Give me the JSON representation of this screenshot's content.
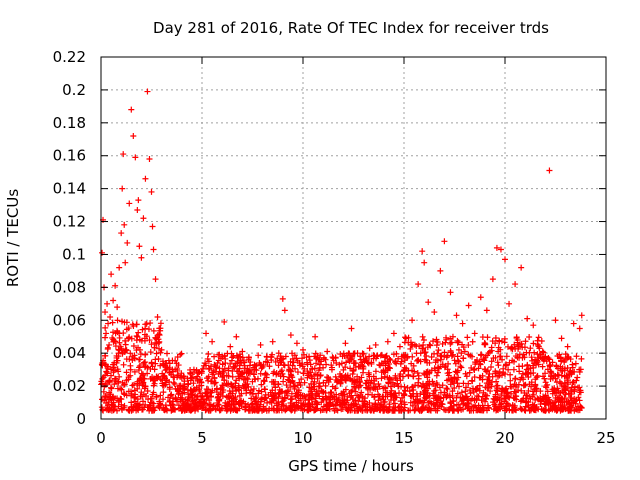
{
  "chart_data": {
    "type": "scatter",
    "title": "Day 281 of 2016, Rate Of TEC Index for receiver trds",
    "xlabel": "GPS time / hours",
    "ylabel": "ROTI / TECUs",
    "xlim": [
      0,
      25
    ],
    "ylim": [
      0,
      0.22
    ],
    "x_ticks": [
      0,
      5,
      10,
      15,
      20,
      25
    ],
    "x_tick_labels": [
      "0",
      "5",
      "10",
      "15",
      "20",
      "25"
    ],
    "y_ticks": [
      0,
      0.02,
      0.04,
      0.06,
      0.08,
      0.1,
      0.12,
      0.14,
      0.16,
      0.18,
      0.2,
      0.22
    ],
    "y_tick_labels": [
      "0",
      "0.02",
      "0.04",
      "0.06",
      "0.08",
      "0.1",
      "0.12",
      "0.14",
      "0.16",
      "0.18",
      "0.2",
      "0.22"
    ],
    "grid": true,
    "marker": "+",
    "marker_color": "#ff0000",
    "series": [
      {
        "name": "ROTI",
        "x": [
          0.05,
          0.1,
          0.15,
          0.2,
          0.25,
          0.3,
          0.35,
          0.4,
          0.45,
          0.5,
          0.6,
          0.7,
          0.8,
          0.9,
          1.0,
          1.05,
          1.1,
          1.15,
          1.2,
          1.3,
          1.4,
          1.5,
          1.6,
          1.7,
          1.8,
          1.85,
          1.9,
          2.0,
          2.1,
          2.2,
          2.3,
          2.4,
          2.5,
          2.55,
          2.6,
          2.7,
          2.8,
          2.9,
          3.0,
          3.2,
          3.4,
          3.6,
          3.8,
          4.0,
          4.3,
          4.6,
          4.9,
          5.2,
          5.5,
          5.8,
          6.1,
          6.4,
          6.7,
          7.0,
          7.3,
          7.6,
          7.9,
          8.2,
          8.5,
          8.8,
          9.0,
          9.1,
          9.4,
          9.7,
          10.0,
          10.3,
          10.6,
          10.9,
          11.2,
          11.5,
          11.8,
          12.1,
          12.4,
          12.7,
          13.0,
          13.3,
          13.6,
          13.9,
          14.2,
          14.5,
          14.8,
          15.1,
          15.4,
          15.7,
          15.9,
          16.0,
          16.2,
          16.5,
          16.8,
          17.0,
          17.3,
          17.6,
          17.9,
          18.2,
          18.5,
          18.8,
          19.1,
          19.4,
          19.6,
          19.8,
          20.0,
          20.2,
          20.5,
          20.8,
          21.1,
          21.4,
          21.7,
          22.0,
          22.2,
          22.5,
          22.8,
          23.1,
          23.4,
          23.7,
          23.8
        ],
        "y": [
          0.101,
          0.121,
          0.08,
          0.065,
          0.052,
          0.07,
          0.058,
          0.045,
          0.062,
          0.088,
          0.072,
          0.081,
          0.068,
          0.092,
          0.113,
          0.14,
          0.161,
          0.118,
          0.095,
          0.107,
          0.131,
          0.188,
          0.172,
          0.159,
          0.127,
          0.133,
          0.105,
          0.098,
          0.122,
          0.146,
          0.199,
          0.158,
          0.138,
          0.117,
          0.103,
          0.085,
          0.062,
          0.051,
          0.042,
          0.034,
          0.028,
          0.022,
          0.018,
          0.025,
          0.021,
          0.03,
          0.024,
          0.052,
          0.047,
          0.039,
          0.059,
          0.044,
          0.05,
          0.041,
          0.036,
          0.033,
          0.045,
          0.038,
          0.047,
          0.04,
          0.073,
          0.066,
          0.051,
          0.046,
          0.042,
          0.038,
          0.05,
          0.035,
          0.041,
          0.037,
          0.033,
          0.046,
          0.055,
          0.04,
          0.036,
          0.043,
          0.045,
          0.039,
          0.047,
          0.052,
          0.044,
          0.049,
          0.06,
          0.082,
          0.102,
          0.095,
          0.071,
          0.065,
          0.09,
          0.108,
          0.077,
          0.063,
          0.058,
          0.069,
          0.052,
          0.074,
          0.066,
          0.085,
          0.104,
          0.103,
          0.097,
          0.07,
          0.082,
          0.092,
          0.061,
          0.057,
          0.043,
          0.038,
          0.151,
          0.06,
          0.049,
          0.044,
          0.058,
          0.055,
          0.063
        ]
      }
    ],
    "dense_band": {
      "description": "dense background noise band of points",
      "typical_range": [
        0.005,
        0.04
      ]
    }
  }
}
